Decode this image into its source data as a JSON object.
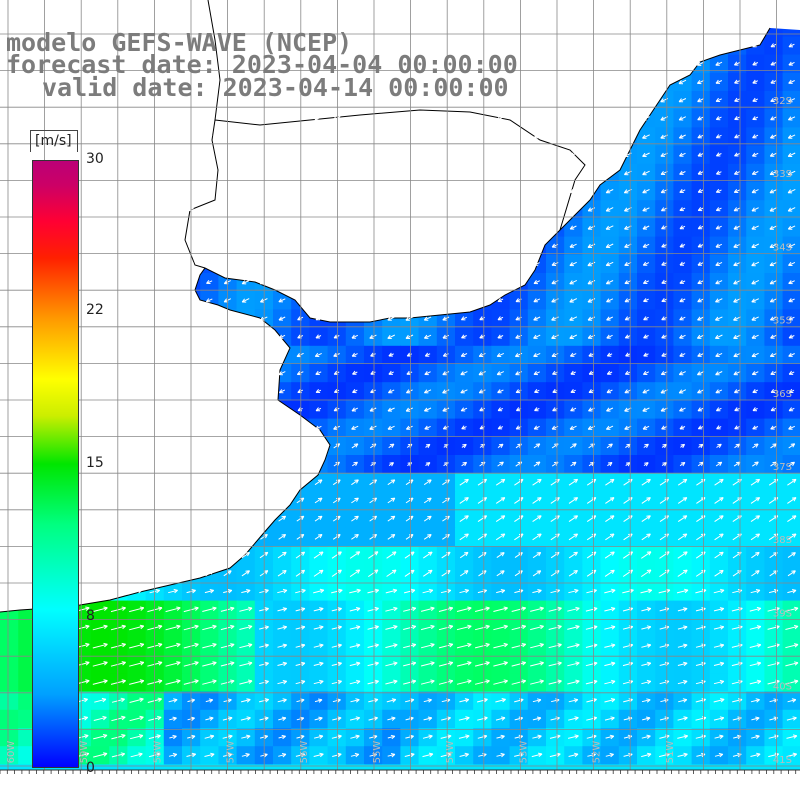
{
  "title": {
    "line1": "modelo GEFS-WAVE (NCEP)",
    "line2": "forecast date: 2023-04-04 00:00:00",
    "line3": "valid date: 2023-04-14 00:00:00"
  },
  "colorbar": {
    "unit": "[m/s]",
    "ticks": [
      "30",
      "22",
      "15",
      "8",
      "0"
    ],
    "min": 0,
    "max": 30
  },
  "lat_labels": [
    "32S",
    "33S",
    "34S",
    "35S",
    "36S",
    "37S",
    "38S",
    "39S",
    "40S",
    "41S"
  ],
  "lon_labels": [
    "60W",
    "59W",
    "58W",
    "57W",
    "56W",
    "55W",
    "54W",
    "53W",
    "52W",
    "51W"
  ],
  "colors": {
    "land": "#ffffff",
    "coast": "#000000",
    "grid": "#888888",
    "arrow": "#ffffff",
    "label": "#7c7c7c"
  }
}
